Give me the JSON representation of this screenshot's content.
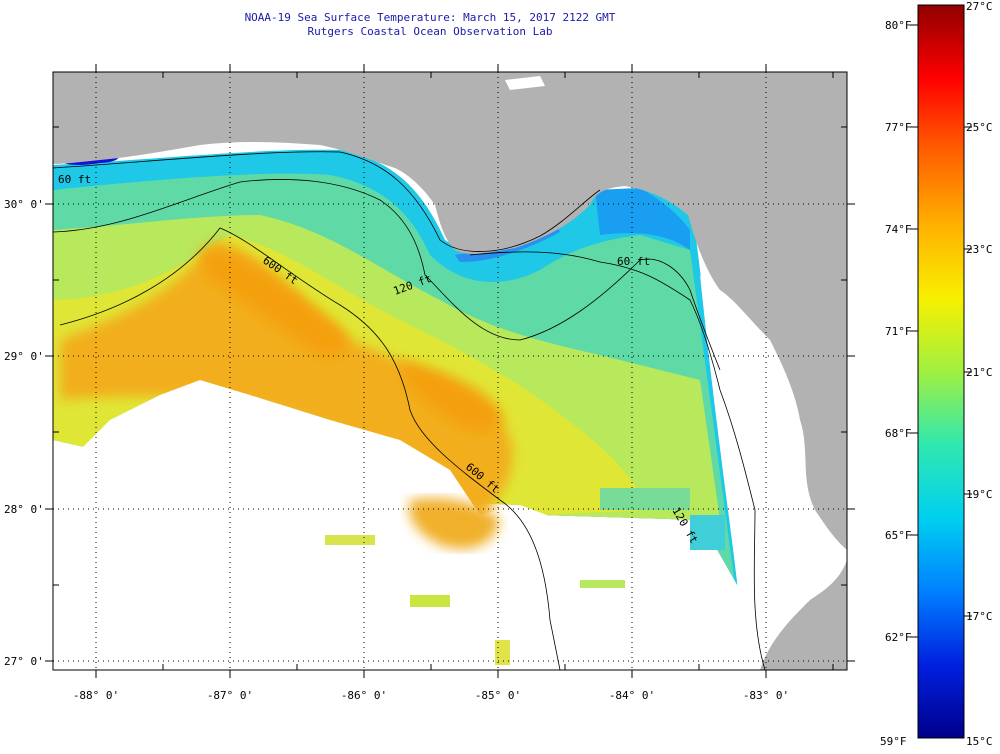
{
  "header": {
    "title": "NOAA-19 Sea Surface Temperature:  March 15, 2017 2122 GMT",
    "subtitle": "Rutgers Coastal Ocean Observation Lab"
  },
  "map": {
    "lat_labels": [
      "30° 0'",
      "29° 0'",
      "28° 0'",
      "27° 0'"
    ],
    "lon_labels": [
      "-88° 0'",
      "-87° 0'",
      "-86° 0'",
      "-85° 0'",
      "-84° 0'",
      "-83° 0'"
    ],
    "contour_labels": [
      "60 ft",
      "120 ft",
      "600 ft",
      "600 ft",
      "60 ft",
      "120 ft"
    ],
    "colors": {
      "land": "#b2b2b2",
      "no_data": "#ffffff",
      "cold_nearshore": "#1010e0",
      "cool": "#16c8e8",
      "mid": "#66dba0",
      "warm": "#d8e838",
      "hot": "#f0a010"
    }
  },
  "colorbar": {
    "fahrenheit_labels": [
      "80°F",
      "77°F",
      "74°F",
      "71°F",
      "68°F",
      "65°F",
      "62°F",
      "59°F"
    ],
    "celsius_labels": [
      "27°C",
      "25°C",
      "23°C",
      "21°C",
      "19°C",
      "17°C",
      "15°C"
    ],
    "stops": [
      "#00008a",
      "#0020e0",
      "#0080ff",
      "#00d0f0",
      "#30e8b0",
      "#a0f040",
      "#f8f000",
      "#ffb000",
      "#ff6000",
      "#ff0000",
      "#900000"
    ]
  }
}
